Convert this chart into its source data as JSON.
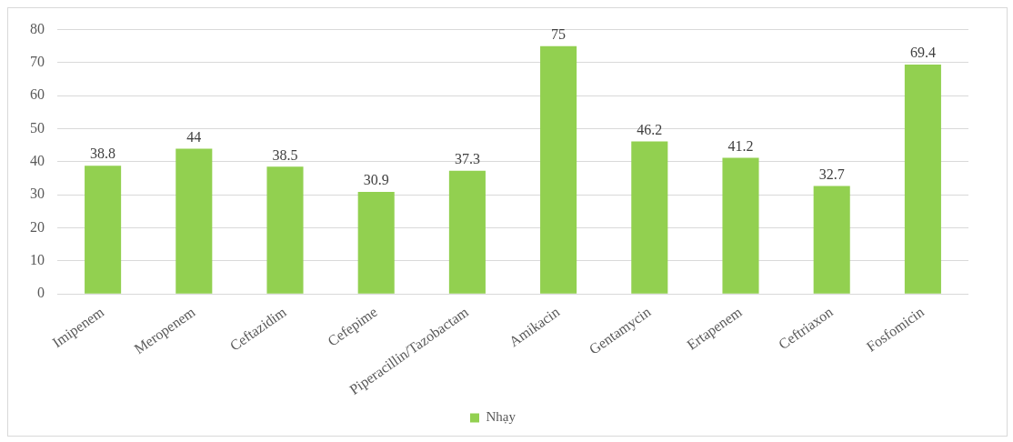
{
  "chart_data": {
    "type": "bar",
    "categories": [
      "Imipenem",
      "Meropenem",
      "Ceftazidim",
      "Cefepime",
      "Piperacillin/Tazobactam",
      "Amikacin",
      "Gentamycin",
      "Ertapenem",
      "Ceftriaxon",
      "Fosfomicin"
    ],
    "series": [
      {
        "name": "Nhạy",
        "color": "#92d050",
        "values": [
          38.8,
          44,
          38.5,
          30.9,
          37.3,
          75,
          46.2,
          41.2,
          32.7,
          69.4
        ]
      }
    ],
    "ylim": [
      0,
      80
    ],
    "yticks": [
      0,
      10,
      20,
      30,
      40,
      50,
      60,
      70,
      80
    ],
    "grid": "y",
    "legend": "bottom",
    "data_labels": true
  }
}
